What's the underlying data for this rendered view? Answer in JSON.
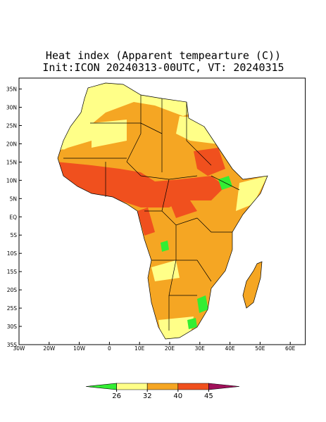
{
  "map": {
    "title": [
      "Heat index (Apparent tempearture (C))",
      "Init:ICON 20240313-00UTC, VT: 20240315"
    ],
    "xlim": [
      -30,
      65
    ],
    "ylim": [
      -35,
      38
    ],
    "xticks": [
      {
        "value": -30,
        "label": "30W"
      },
      {
        "value": -20,
        "label": "20W"
      },
      {
        "value": -10,
        "label": "10W"
      },
      0,
      {
        "value": 10,
        "label": "10E"
      },
      {
        "value": 20,
        "label": "20E"
      },
      {
        "value": 30,
        "label": "30E"
      },
      {
        "value": 40,
        "label": "40E"
      },
      {
        "value": 50,
        "label": "50E"
      },
      {
        "value": 60,
        "label": "60E"
      }
    ],
    "yticks": [
      {
        "value": 35,
        "label": "35N"
      },
      {
        "value": 30,
        "label": "30N"
      },
      {
        "value": 25,
        "label": "25N"
      },
      {
        "value": 20,
        "label": "20N"
      },
      {
        "value": 15,
        "label": "15N"
      },
      {
        "value": 10,
        "label": "10N"
      },
      {
        "value": 5,
        "label": "5N"
      },
      {
        "value": 0,
        "label": "EQ"
      },
      {
        "value": -5,
        "label": "5S"
      },
      {
        "value": -10,
        "label": "10S"
      },
      {
        "value": -15,
        "label": "15S"
      },
      {
        "value": -20,
        "label": "20S"
      },
      {
        "value": -25,
        "label": "25S"
      },
      {
        "value": -30,
        "label": "30S"
      },
      {
        "value": -35,
        "label": "35S"
      }
    ],
    "colorbar": {
      "levels": [
        26,
        32,
        40,
        45
      ],
      "colors": [
        "#33ee33",
        "#ffff88",
        "#f5a623",
        "#f0501e",
        "#a0105a"
      ]
    }
  }
}
